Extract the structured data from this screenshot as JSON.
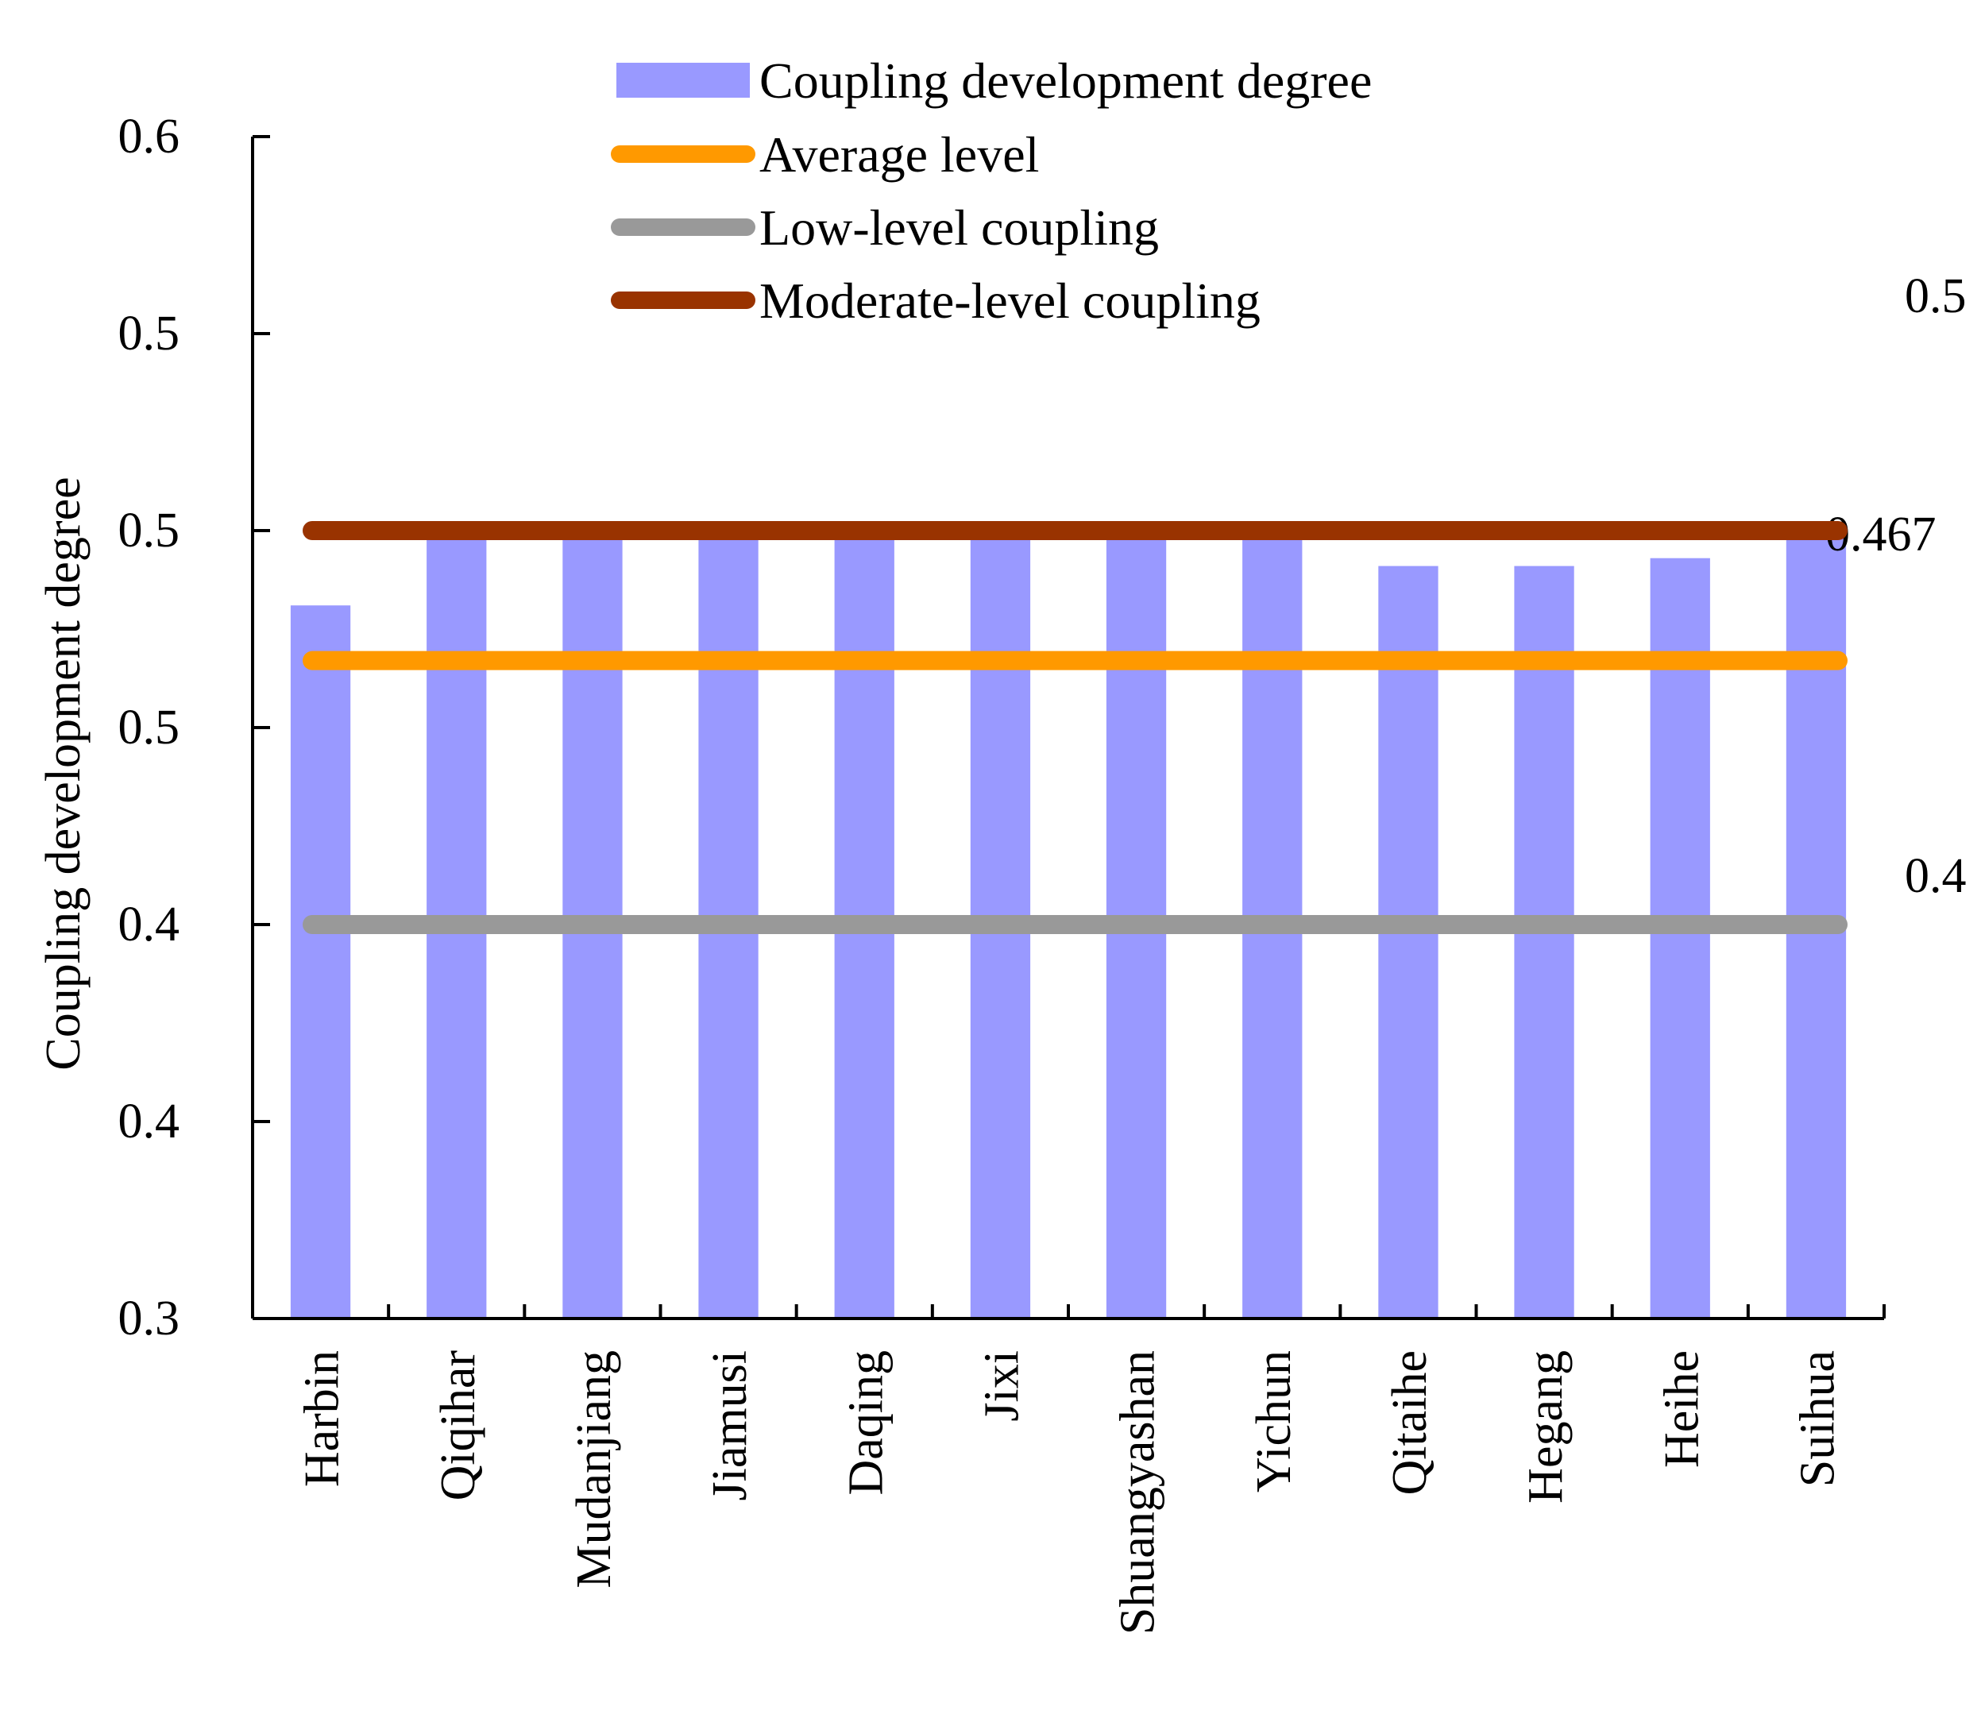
{
  "chart_data": {
    "type": "bar",
    "title": "",
    "xlabel": "",
    "ylabel": "Coupling development degree",
    "categories": [
      "Harbin",
      "Qiqihar",
      "Mudanjiang",
      "Jiamusi",
      "Daqing",
      "Jixi",
      "Shuangyashan",
      "Yichun",
      "Qitaihe",
      "Hegang",
      "Heihe",
      "Suihua"
    ],
    "series": [
      {
        "name": "Coupling development degree",
        "color": "#9999ff",
        "values": [
          0.481,
          0.5,
          0.5,
          0.5,
          0.5,
          0.5,
          0.498,
          0.5,
          0.491,
          0.491,
          0.493,
          0.5
        ]
      }
    ],
    "reference_lines": [
      {
        "key": "average",
        "name": "Average level",
        "value": 0.467,
        "label": "0.467",
        "color": "#ff9900"
      },
      {
        "key": "low",
        "name": "Low-level coupling",
        "value": 0.4,
        "label": "0.4",
        "color": "#999999"
      },
      {
        "key": "moderate",
        "name": "Moderate-level coupling",
        "value": 0.5,
        "label": "0.5",
        "color": "#993300"
      }
    ],
    "ylim": [
      0.3,
      0.6
    ],
    "yticks": [
      0.3,
      0.35,
      0.4,
      0.45,
      0.5,
      0.55,
      0.6
    ],
    "ytick_labels": [
      "0.3",
      "0.4",
      "0.4",
      "0.5",
      "0.5",
      "0.5",
      "0.6"
    ],
    "legend": {
      "position": "top",
      "items": [
        {
          "name": "Coupling development degree",
          "kind": "bar",
          "color": "#9999ff"
        },
        {
          "name": "Average level",
          "kind": "line",
          "color": "#ff9900"
        },
        {
          "name": "Low-level coupling",
          "kind": "line",
          "color": "#999999"
        },
        {
          "name": "Moderate-level coupling",
          "kind": "line",
          "color": "#993300"
        }
      ]
    },
    "grid": false
  }
}
